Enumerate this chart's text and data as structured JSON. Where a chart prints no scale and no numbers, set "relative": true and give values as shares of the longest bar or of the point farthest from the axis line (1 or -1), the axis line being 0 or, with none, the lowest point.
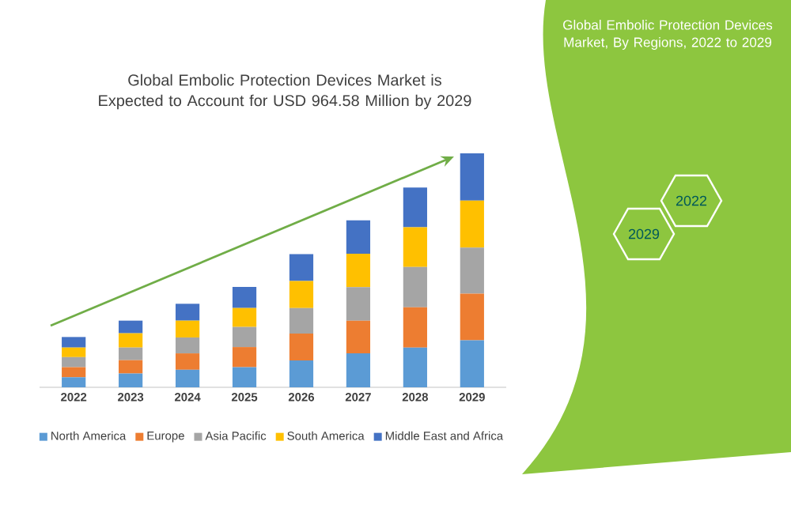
{
  "chart_data": {
    "type": "bar",
    "stacked": true,
    "relative": true,
    "legend": "bottom",
    "title": "Global Embolic Protection Devices Market is Expected to Account for USD 964.58 Million by 2029",
    "subtitle": "Global Embolic Protection Devices Market, By Regions, 2022 to 2029",
    "categories": [
      "2022",
      "2023",
      "2024",
      "2025",
      "2026",
      "2027",
      "2028",
      "2029"
    ],
    "series": [
      {
        "name": "North America",
        "color": "#5b9bd5",
        "values": [
          0.043,
          0.059,
          0.075,
          0.086,
          0.115,
          0.145,
          0.17,
          0.201
        ]
      },
      {
        "name": "Europe",
        "color": "#ed7d31",
        "values": [
          0.043,
          0.057,
          0.07,
          0.086,
          0.115,
          0.14,
          0.172,
          0.199
        ]
      },
      {
        "name": "Asia Pacific",
        "color": "#a5a5a5",
        "values": [
          0.043,
          0.054,
          0.068,
          0.086,
          0.109,
          0.143,
          0.172,
          0.197
        ]
      },
      {
        "name": "South America",
        "color": "#ffc000",
        "values": [
          0.041,
          0.061,
          0.072,
          0.081,
          0.115,
          0.143,
          0.17,
          0.201
        ]
      },
      {
        "name": "Middle East and Africa",
        "color": "#4472c4",
        "values": [
          0.045,
          0.054,
          0.072,
          0.09,
          0.115,
          0.143,
          0.17,
          0.202
        ]
      }
    ],
    "annotations": [
      "2022",
      "2029"
    ]
  }
}
